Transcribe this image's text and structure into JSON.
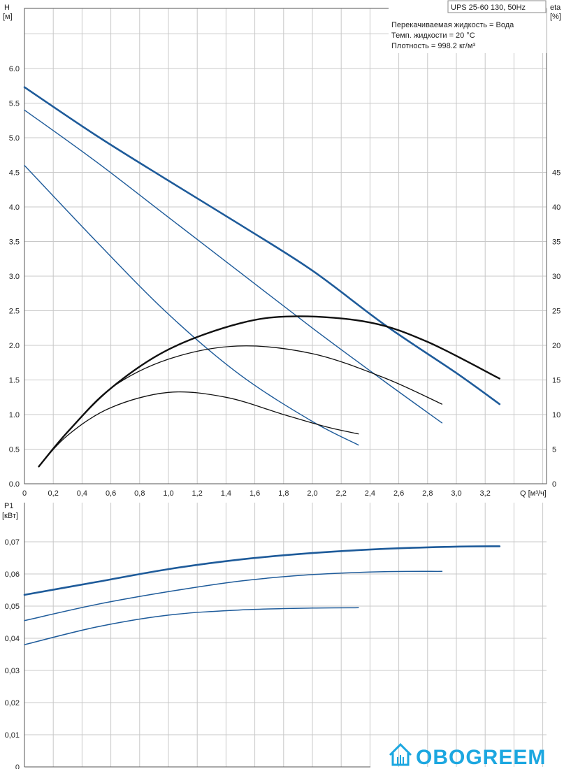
{
  "header": {
    "title": "UPS 25-60 130, 50Hz",
    "info_lines": [
      "Перекачиваемая жидкость = Вода",
      "Темп. жидкости = 20 °C",
      "Плотность = 998.2 кг/м³"
    ]
  },
  "logo": {
    "text": "OBOGREEM"
  },
  "chart_data": [
    {
      "type": "line",
      "ylabel_top": "H",
      "ylabel_unit": "[м]",
      "y2label_top": "eta",
      "y2label_unit": "[%]",
      "xlabel": "Q [м³/ч]",
      "xlim": [
        0,
        3.6
      ],
      "ylim": [
        0,
        6.0
      ],
      "y2lim": [
        0,
        60
      ],
      "grid": true,
      "x_ticks": [
        "0",
        "0,2",
        "0,4",
        "0,6",
        "0,8",
        "1,0",
        "1,2",
        "1,4",
        "1,6",
        "1,8",
        "2,0",
        "2,2",
        "2,4",
        "2,6",
        "2,8",
        "3,0",
        "3,2"
      ],
      "y_ticks": [
        "0.0",
        "0.5",
        "1.0",
        "1.5",
        "2.0",
        "2.5",
        "3.0",
        "3.5",
        "4.0",
        "4.5",
        "5.0",
        "5.5",
        "6.0"
      ],
      "y2_ticks": [
        "0",
        "5",
        "10",
        "15",
        "20",
        "25",
        "30",
        "35",
        "40",
        "45"
      ],
      "series": [
        {
          "axis": "H",
          "color": "#1e5b9a",
          "width": 2.6,
          "x": [
            0,
            0.5,
            1.0,
            1.5,
            2.0,
            2.5,
            3.0,
            3.3
          ],
          "y": [
            5.73,
            5.03,
            4.38,
            3.74,
            3.08,
            2.3,
            1.6,
            1.15
          ]
        },
        {
          "axis": "H",
          "color": "#1e5b9a",
          "width": 1.4,
          "x": [
            0,
            0.5,
            1.0,
            1.5,
            2.0,
            2.5,
            2.9
          ],
          "y": [
            5.4,
            4.65,
            3.85,
            3.05,
            2.25,
            1.48,
            0.88
          ]
        },
        {
          "axis": "H",
          "color": "#1e5b9a",
          "width": 1.4,
          "x": [
            0,
            0.5,
            1.0,
            1.5,
            2.0,
            2.32
          ],
          "y": [
            4.6,
            3.5,
            2.45,
            1.57,
            0.9,
            0.56
          ]
        },
        {
          "axis": "eta",
          "color": "#111111",
          "width": 2.4,
          "x": [
            0.1,
            0.3,
            0.6,
            1.0,
            1.5,
            1.9,
            2.4,
            2.8,
            3.3
          ],
          "y": [
            2.5,
            7.5,
            13.8,
            19.4,
            23.2,
            24.2,
            23.3,
            20.5,
            15.2
          ]
        },
        {
          "axis": "eta",
          "color": "#111111",
          "width": 1.3,
          "x": [
            0.1,
            0.3,
            0.6,
            1.0,
            1.48,
            2.0,
            2.5,
            2.9
          ],
          "y": [
            2.5,
            7.5,
            13.8,
            18.0,
            19.9,
            18.8,
            15.3,
            11.5
          ]
        },
        {
          "axis": "eta",
          "color": "#111111",
          "width": 1.3,
          "x": [
            0.1,
            0.3,
            0.6,
            1.0,
            1.4,
            1.8,
            2.1,
            2.32
          ],
          "y": [
            2.5,
            7.0,
            11.0,
            13.2,
            12.5,
            10.0,
            8.2,
            7.2
          ]
        }
      ]
    },
    {
      "type": "line",
      "ylabel_top": "P1",
      "ylabel_unit": "[кВт]",
      "xlim": [
        0,
        3.6
      ],
      "ylim": [
        0,
        0.08
      ],
      "grid": true,
      "y_ticks": [
        "0",
        "0,01",
        "0,02",
        "0,03",
        "0,04",
        "0,05",
        "0,06",
        "0,07"
      ],
      "series": [
        {
          "color": "#1e5b9a",
          "width": 2.6,
          "x": [
            0,
            0.5,
            1.0,
            1.5,
            2.0,
            2.5,
            3.0,
            3.3
          ],
          "y": [
            0.0535,
            0.0575,
            0.0615,
            0.0645,
            0.0665,
            0.0678,
            0.0685,
            0.0686
          ]
        },
        {
          "color": "#1e5b9a",
          "width": 1.5,
          "x": [
            0,
            0.5,
            1.0,
            1.5,
            2.0,
            2.5,
            2.9
          ],
          "y": [
            0.0455,
            0.0505,
            0.0545,
            0.0578,
            0.0598,
            0.0607,
            0.0608
          ]
        },
        {
          "color": "#1e5b9a",
          "width": 1.5,
          "x": [
            0,
            0.5,
            1.0,
            1.5,
            2.0,
            2.32
          ],
          "y": [
            0.038,
            0.0435,
            0.0472,
            0.0488,
            0.0494,
            0.0495
          ]
        }
      ]
    }
  ]
}
